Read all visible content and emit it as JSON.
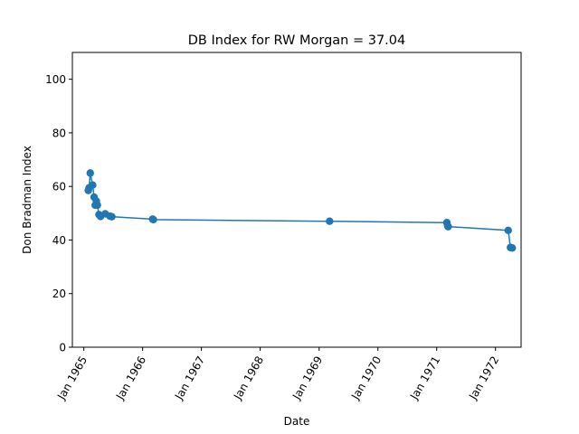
{
  "chart_data": {
    "type": "line",
    "title": "DB Index for RW Morgan = 37.04",
    "xlabel": "Date",
    "ylabel": "Don Bradman Index",
    "x_tick_labels": [
      "Jan 1965",
      "Jan 1966",
      "Jan 1967",
      "Jan 1968",
      "Jan 1969",
      "Jan 1970",
      "Jan 1971",
      "Jan 1972"
    ],
    "x_ticks": [
      "1965-01-01",
      "1966-01-01",
      "1967-01-01",
      "1968-01-01",
      "1969-01-01",
      "1970-01-01",
      "1971-01-01",
      "1972-01-01"
    ],
    "y_ticks": [
      0,
      20,
      40,
      60,
      80,
      100
    ],
    "xlim": [
      "1964-10-22",
      "1972-06-08"
    ],
    "ylim": [
      0,
      110
    ],
    "grid": false,
    "series": [
      {
        "color": "#1f77b4",
        "marker": "circle",
        "points": [
          {
            "x": "1965-01-29",
            "y": 58.5
          },
          {
            "x": "1965-02-03",
            "y": 59.5
          },
          {
            "x": "1965-02-10",
            "y": 65.0
          },
          {
            "x": "1965-02-25",
            "y": 60.5
          },
          {
            "x": "1965-03-06",
            "y": 56.0
          },
          {
            "x": "1965-03-13",
            "y": 53.0
          },
          {
            "x": "1965-03-20",
            "y": 54.5
          },
          {
            "x": "1965-03-26",
            "y": 53.0
          },
          {
            "x": "1965-04-05",
            "y": 49.5
          },
          {
            "x": "1965-04-15",
            "y": 48.8
          },
          {
            "x": "1965-05-14",
            "y": 49.8
          },
          {
            "x": "1965-06-12",
            "y": 48.9
          },
          {
            "x": "1965-06-24",
            "y": 48.7
          },
          {
            "x": "1966-03-04",
            "y": 47.8
          },
          {
            "x": "1966-03-09",
            "y": 47.6
          },
          {
            "x": "1969-03-07",
            "y": 47.0
          },
          {
            "x": "1971-03-05",
            "y": 46.5
          },
          {
            "x": "1971-03-10",
            "y": 45.3
          },
          {
            "x": "1971-03-13",
            "y": 45.0
          },
          {
            "x": "1972-03-20",
            "y": 43.6
          },
          {
            "x": "1972-04-03",
            "y": 37.2
          },
          {
            "x": "1972-04-14",
            "y": 37.04
          }
        ]
      }
    ]
  }
}
